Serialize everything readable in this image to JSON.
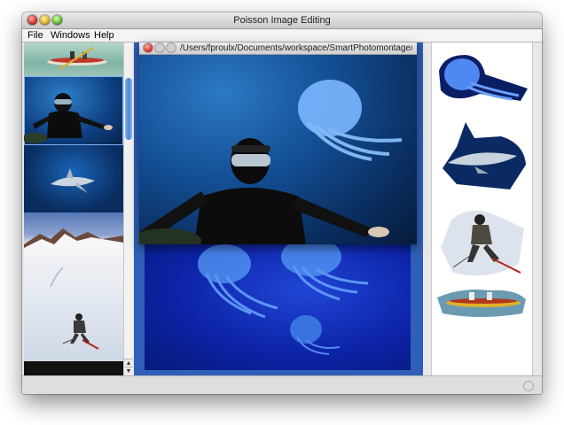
{
  "window": {
    "title": "Poisson Image Editing"
  },
  "menu": {
    "file": "File",
    "windows": "Windows",
    "help": "Help"
  },
  "inner_window": {
    "title": "/Users/fproulx/Documents/workspace/SmartPhotomontage/i..."
  },
  "thumbnails": [
    {
      "subject": "kayak"
    },
    {
      "subject": "diver",
      "selected": true
    },
    {
      "subject": "shark"
    },
    {
      "subject": "snowy-mountains"
    },
    {
      "subject": "skier"
    }
  ],
  "cutouts": [
    "jellyfish",
    "shark",
    "skier",
    "kayak"
  ],
  "colors": {
    "desktop": "#2f5fb8",
    "ocean": "#0d23a8",
    "scroll_thumb": "#4a88d6"
  }
}
